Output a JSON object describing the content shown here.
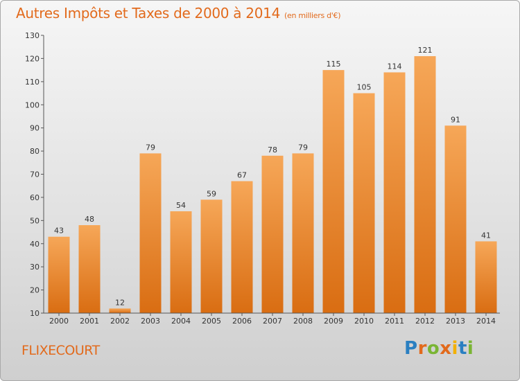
{
  "header": {
    "title": "Autres Impôts et Taxes de 2000 à 2014",
    "unit": "(en milliers d'€)"
  },
  "footer": {
    "commune": "FLIXECOURT",
    "logo": "Proxiti",
    "logo_letters": [
      {
        "ch": "P",
        "color": "#2a7fc1"
      },
      {
        "ch": "r",
        "color": "#e26a1c"
      },
      {
        "ch": "o",
        "color": "#7ab534"
      },
      {
        "ch": "x",
        "color": "#e26a1c"
      },
      {
        "ch": "i",
        "color": "#f3b000"
      },
      {
        "ch": "t",
        "color": "#2a7fc1"
      },
      {
        "ch": "i",
        "color": "#7ab534"
      }
    ]
  },
  "chart_data": {
    "type": "bar",
    "title": "Autres Impôts et Taxes de 2000 à 2014",
    "subtitle": "(en milliers d'€)",
    "categories": [
      "2000",
      "2001",
      "2002",
      "2003",
      "2004",
      "2005",
      "2006",
      "2007",
      "2008",
      "2009",
      "2010",
      "2011",
      "2012",
      "2013",
      "2014"
    ],
    "values": [
      43,
      48,
      12,
      79,
      54,
      59,
      67,
      78,
      79,
      115,
      105,
      114,
      121,
      91,
      41
    ],
    "ylim": [
      10,
      130
    ],
    "yticks": [
      10,
      20,
      30,
      40,
      50,
      60,
      70,
      80,
      90,
      100,
      110,
      120,
      130
    ],
    "xlabel": "",
    "ylabel": "",
    "grid": false,
    "colors": {
      "bar_top": "#f6a758",
      "bar_bottom": "#d96d12",
      "axis": "#555555",
      "text": "#333333"
    }
  }
}
